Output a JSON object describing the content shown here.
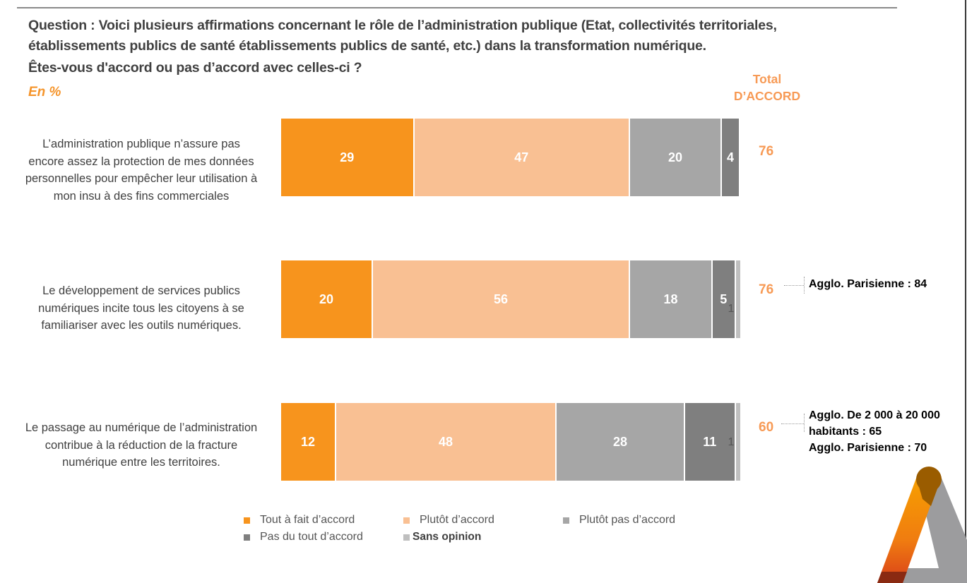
{
  "header": {
    "question_label": "Question :",
    "question_line1": " Voici plusieurs affirmations concernant le rôle de l’administration publique (Etat, collectivités territoriales,",
    "question_line2": "établissements publics de santé établissements publics de santé, etc.) dans la transformation numérique.",
    "question_line3": "Êtes-vous d'accord ou pas d’accord avec celles-ci ?",
    "unit": "En  %",
    "total_header_line1": "Total",
    "total_header_line2": "D’ACCORD"
  },
  "colors": {
    "tout_a_fait": "#f7941d",
    "plutot": "#f9c093",
    "plutot_pas": "#a6a6a6",
    "pas_du_tout": "#7f7f7f",
    "sans_opinion": "#bfbfbf",
    "accent": "#f79a55"
  },
  "chart_data": {
    "type": "bar",
    "orientation": "horizontal-stacked-100",
    "title": "Êtes-vous d'accord ou pas d’accord avec celles-ci ?",
    "unit": "%",
    "xlim": [
      0,
      100
    ],
    "categories": [
      "L’administration publique n’assure pas encore assez la protection de mes données personnelles pour empêcher leur utilisation à mon insu à des fins commerciales",
      "Le développement de services publics numériques incite tous les citoyens à se familiariser avec les outils numériques.",
      "Le passage au numérique de l’administration contribue à la réduction de la fracture numérique entre les territoires."
    ],
    "series": [
      {
        "name": "Tout à fait d’accord",
        "values": [
          29,
          20,
          12
        ]
      },
      {
        "name": "Plutôt d’accord",
        "values": [
          47,
          56,
          48
        ]
      },
      {
        "name": "Plutôt pas d’accord",
        "values": [
          20,
          18,
          28
        ]
      },
      {
        "name": "Pas du tout d’accord",
        "values": [
          4,
          5,
          11
        ]
      },
      {
        "name": "Sans opinion",
        "values": [
          0,
          1,
          1
        ]
      }
    ],
    "totals_label": "Total D’ACCORD",
    "totals": [
      76,
      76,
      60
    ],
    "legend_position": "bottom"
  },
  "rows": [
    {
      "label_lines": [
        "L’administration publique n’assure pas",
        "encore assez la protection de mes données",
        "personnelles pour empêcher leur utilisation à",
        "mon insu à des fins commerciales"
      ],
      "total": "76",
      "note_lines": []
    },
    {
      "label_lines": [
        "Le développement de services publics",
        "numériques incite tous les citoyens à se",
        "familiariser avec les outils numériques."
      ],
      "total": "76",
      "note_lines": [
        "Agglo. Parisienne : 84"
      ]
    },
    {
      "label_lines": [
        "Le passage au numérique de l’administration",
        "contribue à la réduction de la fracture",
        "numérique entre les territoires."
      ],
      "total": "60",
      "note_lines": [
        "Agglo. De 2 000 à 20 000",
        "habitants : 65",
        "Agglo. Parisienne : 70"
      ]
    }
  ],
  "legend": [
    {
      "label": "Tout à fait d’accord",
      "color_key": "tout_a_fait"
    },
    {
      "label": "Plutôt d’accord",
      "color_key": "plutot"
    },
    {
      "label": "Plutôt pas d’accord",
      "color_key": "plutot_pas"
    },
    {
      "label": "Pas du tout d’accord",
      "color_key": "pas_du_tout"
    },
    {
      "label": "Sans opinion",
      "color_key": "sans_opinion"
    }
  ]
}
